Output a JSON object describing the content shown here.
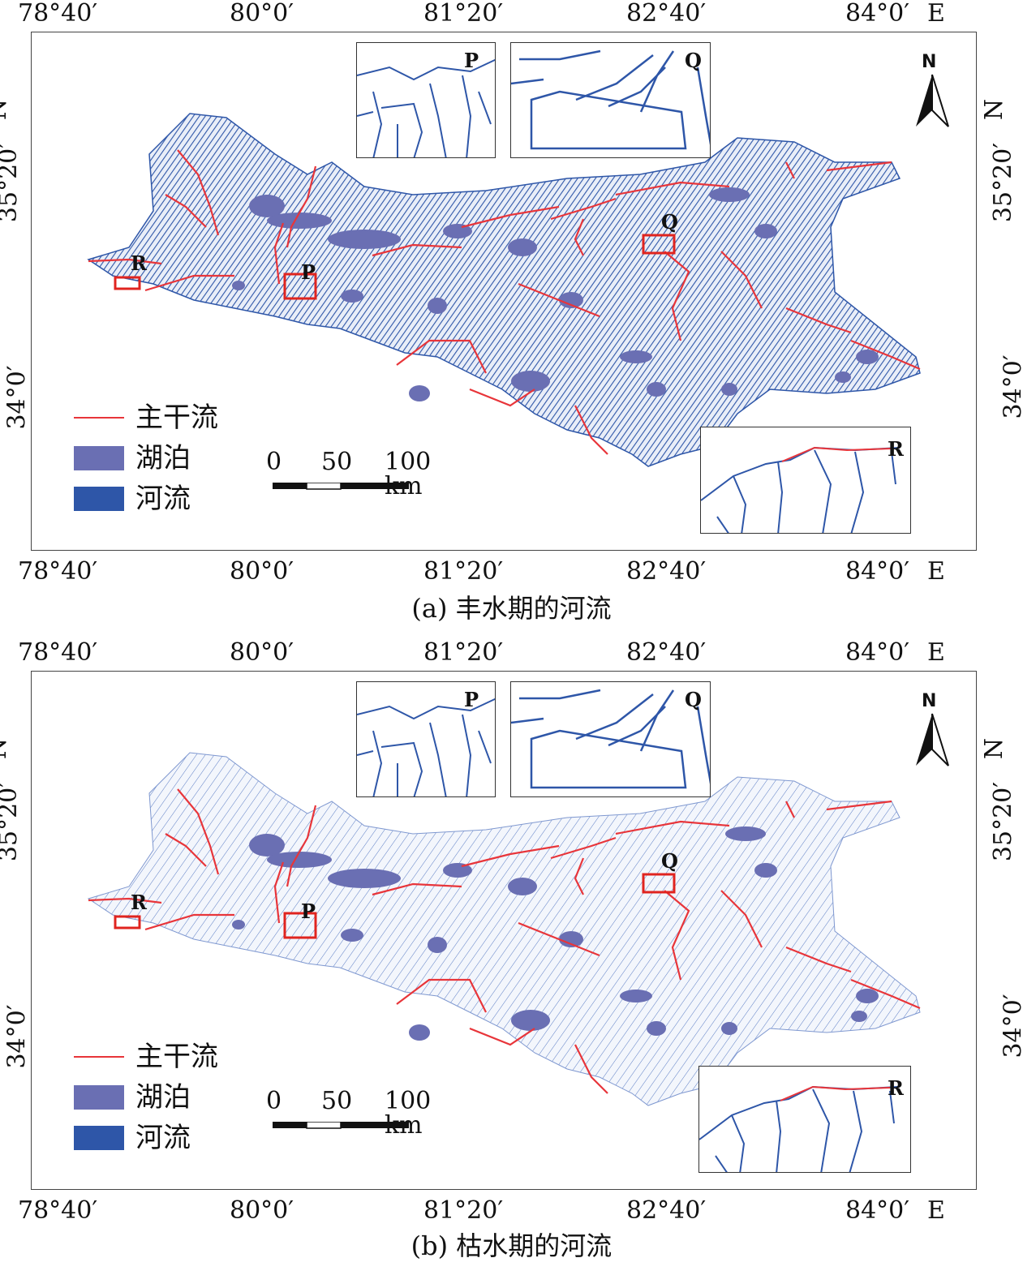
{
  "axes": {
    "lon_labels": [
      "78°40′",
      "80°0′",
      "81°20′",
      "82°40′",
      "84°0′"
    ],
    "lon_suffix": "E",
    "lat_labels": [
      "35°20′",
      "34°0′"
    ],
    "lat_suffix": "N"
  },
  "legend": {
    "main_stream": "主干流",
    "lake": "湖泊",
    "river": "河流"
  },
  "scale_bar": {
    "labels": [
      "0",
      "50",
      "100 km"
    ]
  },
  "markers": {
    "p": "P",
    "q": "Q",
    "r": "R"
  },
  "north_arrow": "N",
  "colors": {
    "main_stream": "#e8353a",
    "lake": "#6a6fb3",
    "river": "#2e56a8",
    "marker_box": "#e0241f"
  },
  "panels": [
    {
      "caption": "(a) 丰水期的河流"
    },
    {
      "caption": "(b) 枯水期的河流"
    }
  ]
}
